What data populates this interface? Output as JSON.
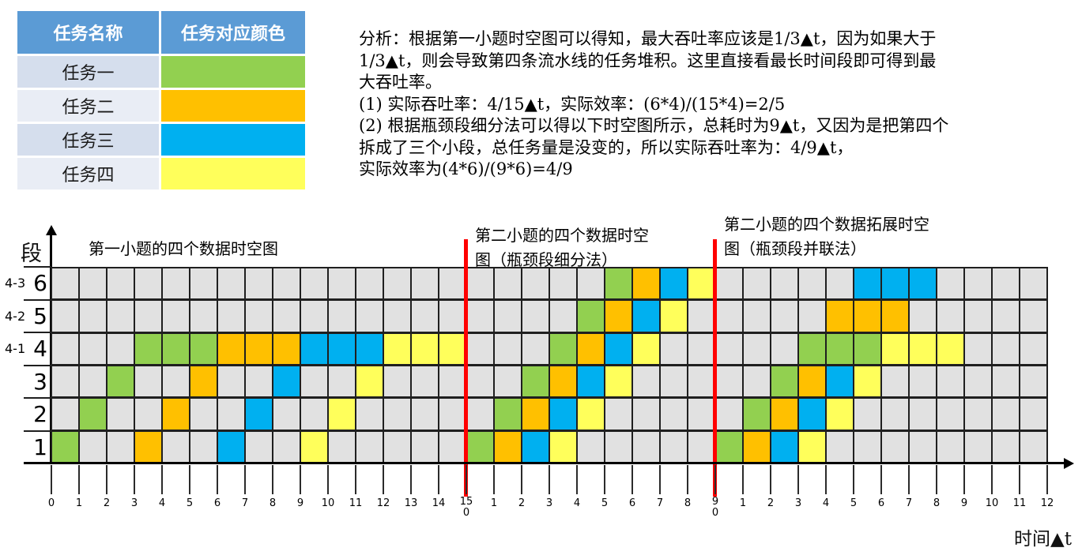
{
  "table": {
    "headers": [
      "任务名称",
      "任务对应颜色"
    ],
    "rows": [
      {
        "name": "任务一",
        "color_key": "g"
      },
      {
        "name": "任务二",
        "color_key": "o"
      },
      {
        "name": "任务三",
        "color_key": "b"
      },
      {
        "name": "任务四",
        "color_key": "y"
      }
    ]
  },
  "analysis": {
    "lines": [
      "分析：根据第一小题时空图可以得知，最大吞吐率应该是1/3▲t，因为如果大于",
      "1/3▲t，则会导致第四条流水线的任务堆积。这里直接看最长时间段即可得到最",
      "大吞吐率。",
      "(1) 实际吞吐率：4/15▲t，实际效率：(6*4)/(15*4)=2/5",
      "(2) 根据瓶颈段细分法可以得以下时空图所示，总耗时为9▲t，又因为是把第四个",
      "拆成了三个小段，总任务量是没变的，所以实际吞吐率为：4/9▲t，",
      "实际效率为(4*6)/(9*6)=4/9"
    ]
  },
  "chart": {
    "y_axis_label": "段",
    "x_axis_label": "时间▲t",
    "section_titles": [
      {
        "lines": [
          "第一小题的四个数据时空图"
        ]
      },
      {
        "lines": [
          "第二小题的四个数据时空",
          "图（瓶颈段细分法）"
        ]
      },
      {
        "lines": [
          "第二小题的四个数据拓展时空",
          "图（瓶颈段并联法）"
        ]
      }
    ]
  },
  "colors": {
    "g": "#92D050",
    "o": "#FFC000",
    "b": "#00B0F0",
    "y": "#FFFF5B",
    "header_blue": "#5B9BD5",
    "row_bg_odd": "#D5DEED",
    "row_bg_even": "#E9EDF5",
    "grid_empty": "#E1E1E1",
    "grid_line": "#1F1F1F",
    "red_line": "#FF0000"
  },
  "chart_data": {
    "type": "heatmap",
    "x_axis_label": "时间▲t",
    "y_axis_label": "段",
    "row_labels_top_to_bottom": [
      "6",
      "5",
      "4",
      "3",
      "2",
      "1"
    ],
    "row_sublabels_top_to_bottom": [
      "4-3",
      "4-2",
      "4-1",
      "",
      "",
      ""
    ],
    "n_cols": 36,
    "tick_labels": [
      "0",
      "1",
      "2",
      "3",
      "4",
      "5",
      "6",
      "7",
      "8",
      "9",
      "10",
      "11",
      "12",
      "13",
      "14",
      "15|0",
      "1",
      "2",
      "3",
      "4",
      "5",
      "6",
      "7",
      "8",
      "9|0",
      "1",
      "2",
      "3",
      "4",
      "5",
      "6",
      "7",
      "8",
      "9",
      "10",
      "11",
      "12"
    ],
    "red_line_cols": [
      15,
      24
    ],
    "sections": [
      {
        "title": "第一小题的四个数据时空图",
        "col_start": 0,
        "col_end": 14
      },
      {
        "title": "第二小题的四个数据时空图（瓶颈段细分法）",
        "col_start": 15,
        "col_end": 23
      },
      {
        "title": "第二小题的四个数据拓展时空图（瓶颈段并联法）",
        "col_start": 24,
        "col_end": 35
      }
    ],
    "legend": [
      {
        "label": "任务一",
        "color": "#92D050"
      },
      {
        "label": "任务二",
        "color": "#FFC000"
      },
      {
        "label": "任务三",
        "color": "#00B0F0"
      },
      {
        "label": "任务四",
        "color": "#FFFF5B"
      }
    ],
    "cells": [
      [
        1,
        0,
        "g"
      ],
      [
        2,
        1,
        "g"
      ],
      [
        3,
        2,
        "g"
      ],
      [
        4,
        3,
        "g"
      ],
      [
        4,
        4,
        "g"
      ],
      [
        4,
        5,
        "g"
      ],
      [
        1,
        3,
        "o"
      ],
      [
        2,
        4,
        "o"
      ],
      [
        3,
        5,
        "o"
      ],
      [
        4,
        6,
        "o"
      ],
      [
        4,
        7,
        "o"
      ],
      [
        4,
        8,
        "o"
      ],
      [
        1,
        6,
        "b"
      ],
      [
        2,
        7,
        "b"
      ],
      [
        3,
        8,
        "b"
      ],
      [
        4,
        9,
        "b"
      ],
      [
        4,
        10,
        "b"
      ],
      [
        4,
        11,
        "b"
      ],
      [
        1,
        9,
        "y"
      ],
      [
        2,
        10,
        "y"
      ],
      [
        3,
        11,
        "y"
      ],
      [
        4,
        12,
        "y"
      ],
      [
        4,
        13,
        "y"
      ],
      [
        4,
        14,
        "y"
      ],
      [
        1,
        15,
        "g"
      ],
      [
        2,
        16,
        "g"
      ],
      [
        3,
        17,
        "g"
      ],
      [
        4,
        18,
        "g"
      ],
      [
        5,
        19,
        "g"
      ],
      [
        6,
        20,
        "g"
      ],
      [
        1,
        16,
        "o"
      ],
      [
        2,
        17,
        "o"
      ],
      [
        3,
        18,
        "o"
      ],
      [
        4,
        19,
        "o"
      ],
      [
        5,
        20,
        "o"
      ],
      [
        6,
        21,
        "o"
      ],
      [
        1,
        17,
        "b"
      ],
      [
        2,
        18,
        "b"
      ],
      [
        3,
        19,
        "b"
      ],
      [
        4,
        20,
        "b"
      ],
      [
        5,
        21,
        "b"
      ],
      [
        6,
        22,
        "b"
      ],
      [
        1,
        18,
        "y"
      ],
      [
        2,
        19,
        "y"
      ],
      [
        3,
        20,
        "y"
      ],
      [
        4,
        21,
        "y"
      ],
      [
        5,
        22,
        "y"
      ],
      [
        6,
        23,
        "y"
      ],
      [
        1,
        24,
        "g"
      ],
      [
        2,
        25,
        "g"
      ],
      [
        3,
        26,
        "g"
      ],
      [
        4,
        27,
        "g"
      ],
      [
        4,
        28,
        "g"
      ],
      [
        4,
        29,
        "g"
      ],
      [
        1,
        25,
        "o"
      ],
      [
        2,
        26,
        "o"
      ],
      [
        3,
        27,
        "o"
      ],
      [
        5,
        28,
        "o"
      ],
      [
        5,
        29,
        "o"
      ],
      [
        5,
        30,
        "o"
      ],
      [
        1,
        26,
        "b"
      ],
      [
        2,
        27,
        "b"
      ],
      [
        3,
        28,
        "b"
      ],
      [
        6,
        29,
        "b"
      ],
      [
        6,
        30,
        "b"
      ],
      [
        6,
        31,
        "b"
      ],
      [
        1,
        27,
        "y"
      ],
      [
        2,
        28,
        "y"
      ],
      [
        3,
        29,
        "y"
      ],
      [
        4,
        30,
        "y"
      ],
      [
        4,
        31,
        "y"
      ],
      [
        4,
        32,
        "y"
      ]
    ]
  }
}
